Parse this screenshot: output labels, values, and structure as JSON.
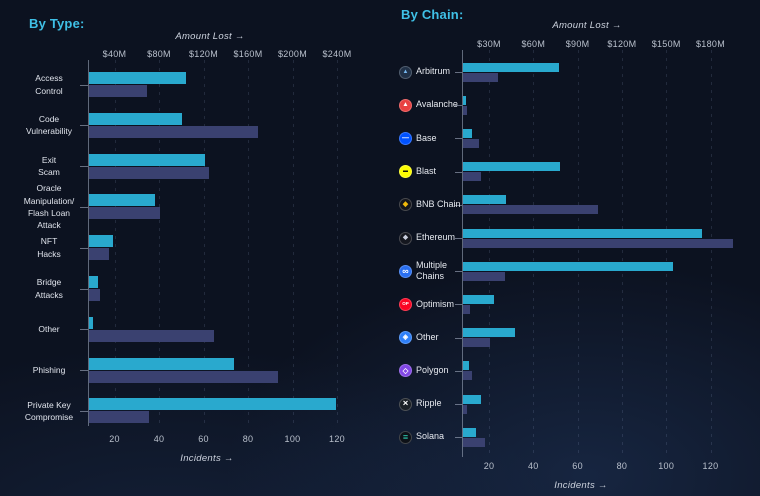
{
  "colors": {
    "background": "#0c1220",
    "accent_title": "#3fc0e6",
    "amount_bar": "#29a9ce",
    "incidents_bar": "#3a4170",
    "tick_text": "#b9c0cc",
    "axis_title_text": "#cdd3de"
  },
  "chart_data": [
    {
      "type": "bar",
      "orientation": "horizontal",
      "title": "By Type:",
      "legend_position": "none",
      "grid": "dashed-vertical",
      "amount_axis": {
        "label": "Amount Lost",
        "title_text": "Amount Lost  →",
        "unit": "$M",
        "min": 0,
        "ticks": [
          40,
          80,
          120,
          160,
          200,
          240
        ],
        "tick_labels": [
          "$40M",
          "$80M",
          "$120M",
          "$160M",
          "$200M",
          "$240M"
        ]
      },
      "incidents_axis": {
        "label": "Incidents",
        "title_text": "Incidents  →",
        "min": 0,
        "ticks": [
          20,
          40,
          60,
          80,
          100,
          120
        ],
        "tick_labels": [
          "20",
          "40",
          "60",
          "80",
          "100",
          "120"
        ]
      },
      "series": [
        {
          "name": "Amount Lost ($M)",
          "color": "#29a9ce",
          "axis": "top"
        },
        {
          "name": "Incidents",
          "color": "#3a4170",
          "axis": "bottom"
        }
      ],
      "categories": [
        "Access Control",
        "Code Vulnerability",
        "Exit Scam",
        "Oracle Manipulation/Flash Loan Attack",
        "NFT Hacks",
        "Bridge Attacks",
        "Other",
        "Phishing",
        "Private Key Compromise"
      ],
      "rows": [
        {
          "name": "Access Control",
          "label": "Access\nControl",
          "amount_lost_m": 87,
          "incidents": 26
        },
        {
          "name": "Code Vulnerability",
          "label": "Code\nVulnerability",
          "amount_lost_m": 84,
          "incidents": 76
        },
        {
          "name": "Exit Scam",
          "label": "Exit\nScam",
          "amount_lost_m": 104,
          "incidents": 54
        },
        {
          "name": "Oracle Manipulation Flash Loan Attack",
          "label": "Oracle\nManipulation/\nFlash Loan\nAttack",
          "amount_lost_m": 59,
          "incidents": 32
        },
        {
          "name": "NFT Hacks",
          "label": "NFT\nHacks",
          "amount_lost_m": 22,
          "incidents": 9
        },
        {
          "name": "Bridge Attacks",
          "label": "Bridge\nAttacks",
          "amount_lost_m": 8,
          "incidents": 5
        },
        {
          "name": "Other",
          "label": "Other",
          "amount_lost_m": 4,
          "incidents": 56
        },
        {
          "name": "Phishing",
          "label": "Phishing",
          "amount_lost_m": 130,
          "incidents": 85
        },
        {
          "name": "Private Key Compromise",
          "label": "Private Key\nCompromise",
          "amount_lost_m": 222,
          "incidents": 27
        }
      ]
    },
    {
      "type": "bar",
      "orientation": "horizontal",
      "title": "By Chain:",
      "legend_position": "none",
      "grid": "dashed-vertical",
      "amount_axis": {
        "label": "Amount Lost",
        "title_text": "Amount Lost  →",
        "unit": "$M",
        "min": 0,
        "ticks": [
          30,
          60,
          90,
          120,
          150,
          180
        ],
        "tick_labels": [
          "$30M",
          "$60M",
          "$90M",
          "$120M",
          "$150M",
          "$180M"
        ]
      },
      "incidents_axis": {
        "label": "Incidents",
        "title_text": "Incidents  →",
        "min": 0,
        "ticks": [
          20,
          40,
          60,
          80,
          100,
          120
        ],
        "tick_labels": [
          "20",
          "40",
          "60",
          "80",
          "100",
          "120"
        ]
      },
      "series": [
        {
          "name": "Amount Lost ($M)",
          "color": "#29a9ce",
          "axis": "top"
        },
        {
          "name": "Incidents",
          "color": "#3a4170",
          "axis": "bottom"
        }
      ],
      "categories": [
        "Arbitrum",
        "Avalanche",
        "Base",
        "Blast",
        "BNB Chain",
        "Ethereum",
        "Multiple Chains",
        "Optimism",
        "Other",
        "Polygon",
        "Ripple",
        "Solana"
      ],
      "rows": [
        {
          "name": "Arbitrum",
          "label": "Arbitrum",
          "amount_lost_m": 65,
          "incidents": 16,
          "icon": {
            "name": "arbitrum-icon",
            "bg": "#213147",
            "glyph": "▲",
            "glyph_color": "#77b8ef",
            "glyph_size": 6
          }
        },
        {
          "name": "Avalanche",
          "label": "Avalanche",
          "amount_lost_m": 2,
          "incidents": 2,
          "icon": {
            "name": "avalanche-icon",
            "bg": "#e84142",
            "glyph": "▲",
            "glyph_color": "#ffffff",
            "glyph_size": 6.5
          }
        },
        {
          "name": "Base",
          "label": "Base",
          "amount_lost_m": 6,
          "incidents": 7,
          "icon": {
            "name": "base-icon",
            "bg": "#0052ff",
            "glyph": "—",
            "glyph_color": "#ffffff",
            "glyph_size": 7
          }
        },
        {
          "name": "Blast",
          "label": "Blast",
          "amount_lost_m": 66,
          "incidents": 8,
          "icon": {
            "name": "blast-icon",
            "bg": "#fcfc03",
            "glyph": "▬",
            "glyph_color": "#17170a",
            "glyph_size": 5
          }
        },
        {
          "name": "BNB Chain",
          "label": "BNB Chain",
          "amount_lost_m": 29,
          "incidents": 61,
          "icon": {
            "name": "bnb-chain-icon",
            "bg": "#15161c",
            "glyph": "◆",
            "glyph_color": "#f0b90b",
            "glyph_size": 7
          }
        },
        {
          "name": "Ethereum",
          "label": "Ethereum",
          "amount_lost_m": 162,
          "incidents": 122,
          "icon": {
            "name": "ethereum-icon",
            "bg": "#15171f",
            "glyph": "◆",
            "glyph_color": "#c9cede",
            "glyph_size": 6.5
          }
        },
        {
          "name": "Multiple Chains",
          "label": "Multiple\nChains",
          "amount_lost_m": 142,
          "incidents": 19,
          "icon": {
            "name": "multiple-chains-icon",
            "bg": "#2a6ff0",
            "glyph": "∞",
            "glyph_color": "#ffffff",
            "glyph_size": 9
          }
        },
        {
          "name": "Optimism",
          "label": "Optimism",
          "amount_lost_m": 21,
          "incidents": 3,
          "icon": {
            "name": "optimism-icon",
            "bg": "#fb0423",
            "glyph": "OP",
            "glyph_color": "#ffffff",
            "glyph_size": 4.5
          }
        },
        {
          "name": "Other",
          "label": "Other",
          "amount_lost_m": 35,
          "incidents": 12,
          "icon": {
            "name": "other-chain-icon",
            "bg": "#2e7ff8",
            "glyph": "◈",
            "glyph_color": "#ffffff",
            "glyph_size": 7
          }
        },
        {
          "name": "Polygon",
          "label": "Polygon",
          "amount_lost_m": 4,
          "incidents": 4,
          "icon": {
            "name": "polygon-icon",
            "bg": "#8247e5",
            "glyph": "◇",
            "glyph_color": "#ffffff",
            "glyph_size": 7.5
          }
        },
        {
          "name": "Ripple",
          "label": "Ripple",
          "amount_lost_m": 12,
          "incidents": 2,
          "icon": {
            "name": "ripple-icon",
            "bg": "#1b2026",
            "glyph": "×",
            "glyph_color": "#ffffff",
            "glyph_size": 9.5
          }
        },
        {
          "name": "Solana",
          "label": "Solana",
          "amount_lost_m": 9,
          "incidents": 10,
          "icon": {
            "name": "solana-icon",
            "bg": "#0d1117",
            "glyph": "≡",
            "glyph_color": "#2ed3b7",
            "glyph_size": 9
          }
        }
      ]
    }
  ]
}
